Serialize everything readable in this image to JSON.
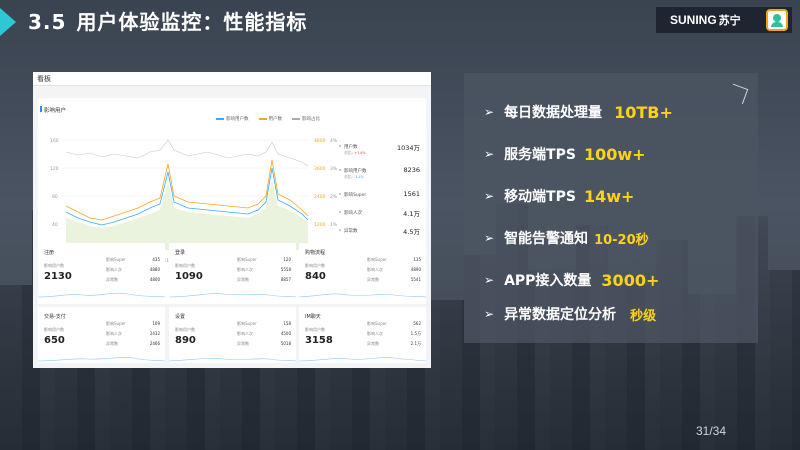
{
  "header": {
    "section_num": "3.5",
    "title": "用户体验监控：性能指标",
    "brand_en": "SUNING",
    "brand_cn": "苏宁",
    "accent_color": "#2fc6d6"
  },
  "dashboard": {
    "topbar_label": "看板",
    "main_chart": {
      "title": "影响用户",
      "legend": [
        "影响用户数",
        "用户数",
        "影响占比"
      ],
      "y_left_ticks": [
        "160",
        "120",
        "80",
        "40",
        "0"
      ],
      "y_mid_ticks": [
        "4800",
        "3600",
        "2400",
        "1200",
        "0"
      ],
      "y_right_ticks": [
        "4%",
        "3%",
        "2%",
        "1%",
        "0%"
      ],
      "x_ticks": [
        "12-11",
        "12-11",
        "12-11",
        "12-11",
        "12-11",
        "12-11",
        "12-11",
        "12-11"
      ],
      "stats": [
        {
          "label": "用户数",
          "value": "1034万",
          "sub_label": "对比:",
          "sub_value": "+14%",
          "sub_color": "red"
        },
        {
          "label": "影响用户数",
          "value": "8236",
          "sub_label": "对比:",
          "sub_value": "-11%",
          "sub_color": "blue"
        },
        {
          "label": "影响Super",
          "value": "1561",
          "sub_label": "",
          "sub_value": "",
          "sub_color": ""
        },
        {
          "label": "影响人次",
          "value": "4.1万",
          "sub_label": "",
          "sub_value": "",
          "sub_color": ""
        },
        {
          "label": "异常数",
          "value": "4.5万",
          "sub_label": "",
          "sub_value": "",
          "sub_color": ""
        }
      ]
    },
    "cards": [
      {
        "title": "注册",
        "big_label": "影响用户数",
        "big": "2130",
        "k1": "影响Super",
        "v1": "435",
        "k2": "影响人次",
        "v2": "4880",
        "k3": "异常数",
        "v3": "4800"
      },
      {
        "title": "登录",
        "big_label": "影响用户数",
        "big": "1090",
        "k1": "影响Super",
        "v1": "120",
        "k2": "影响人次",
        "v2": "5558",
        "k3": "异常数",
        "v3": "8857"
      },
      {
        "title": "购物流程",
        "big_label": "影响用户数",
        "big": "840",
        "k1": "影响Super",
        "v1": "135",
        "k2": "影响人次",
        "v2": "4890",
        "k3": "异常数",
        "v3": "5541"
      },
      {
        "title": "交易-支付",
        "big_label": "影响用户数",
        "big": "650",
        "k1": "影响Super",
        "v1": "109",
        "k2": "影响人次",
        "v2": "2432",
        "k3": "异常数",
        "v3": "2466"
      },
      {
        "title": "设置",
        "big_label": "影响用户数",
        "big": "890",
        "k1": "影响Super",
        "v1": "158",
        "k2": "影响人次",
        "v2": "4500",
        "k3": "异常数",
        "v3": "5018"
      },
      {
        "title": "IM聊天",
        "big_label": "影响用户数",
        "big": "3158",
        "k1": "影响Super",
        "v1": "562",
        "k2": "影响人次",
        "v2": "1.5万",
        "k3": "异常数",
        "v3": "2.1万"
      }
    ]
  },
  "bullets": [
    {
      "arrow": "➢",
      "text": "每日数据处理量",
      "highlight": "10TB+"
    },
    {
      "arrow": "➢",
      "text": "服务端TPS",
      "highlight": "100w+"
    },
    {
      "arrow": "➢",
      "text": "移动端TPS",
      "highlight": "14w+"
    },
    {
      "arrow": "➢",
      "text": "智能告警通知",
      "highlight": "10-20秒"
    },
    {
      "arrow": "➢",
      "text": "APP接入数量",
      "highlight": "3000+"
    },
    {
      "arrow": "➢",
      "text": "异常数据定位分析",
      "highlight": "秒级"
    }
  ],
  "highlight_color": "#ffd21a",
  "page_number": "31/34"
}
